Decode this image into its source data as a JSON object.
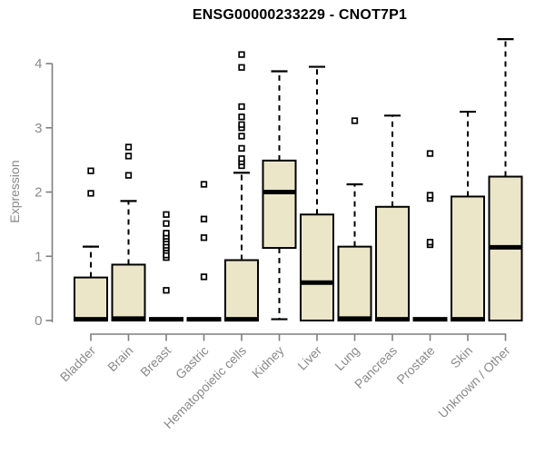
{
  "chart_data": {
    "type": "boxplot",
    "title": "ENSG00000233229 - CNOT7P1",
    "xlabel": "",
    "ylabel": "Expression",
    "ylim": [
      0,
      4.4
    ],
    "yticks": [
      0,
      1,
      2,
      3,
      4
    ],
    "grid": false,
    "legend": "none",
    "colors": {
      "box_fill": "#ece6c9",
      "box_stroke": "#000000",
      "median": "#000000",
      "whisker": "#000000",
      "axis": "#7f7f7f",
      "tick_label": "#8a8a8a",
      "title": "#000000",
      "background": "#ffffff"
    },
    "categories": [
      "Bladder",
      "Brain",
      "Breast",
      "Gastric",
      "Hematopoietic cells",
      "Kidney",
      "Liver",
      "Lung",
      "Pancreas",
      "Prostate",
      "Skin",
      "Unknown / Other"
    ],
    "series": [
      {
        "name": "Bladder",
        "q1": 0,
        "median": 0.02,
        "q3": 0.67,
        "whisker_low": 0,
        "whisker_high": 1.15,
        "outliers": [
          1.98,
          2.33
        ]
      },
      {
        "name": "Brain",
        "q1": 0,
        "median": 0.03,
        "q3": 0.87,
        "whisker_low": 0,
        "whisker_high": 1.86,
        "outliers": [
          2.26,
          2.56,
          2.7
        ]
      },
      {
        "name": "Breast",
        "q1": 0,
        "median": 0.02,
        "q3": 0.03,
        "whisker_low": 0,
        "whisker_high": 0.03,
        "outliers": [
          0.47,
          0.98,
          1.02,
          1.09,
          1.13,
          1.17,
          1.22,
          1.27,
          1.31,
          1.36,
          1.51,
          1.65
        ]
      },
      {
        "name": "Gastric",
        "q1": 0,
        "median": 0.02,
        "q3": 0.03,
        "whisker_low": 0,
        "whisker_high": 0.03,
        "outliers": [
          0.68,
          1.29,
          1.58,
          2.12
        ]
      },
      {
        "name": "Hematopoietic cells",
        "q1": 0,
        "median": 0.02,
        "q3": 0.94,
        "whisker_low": 0,
        "whisker_high": 2.3,
        "outliers": [
          2.41,
          2.47,
          2.52,
          2.68,
          2.87,
          3.0,
          3.05,
          3.17,
          3.33,
          3.94,
          4.14
        ]
      },
      {
        "name": "Kidney",
        "q1": 1.13,
        "median": 2.0,
        "q3": 2.49,
        "whisker_low": 0.02,
        "whisker_high": 3.88,
        "outliers": []
      },
      {
        "name": "Liver",
        "q1": 0,
        "median": 0.59,
        "q3": 1.65,
        "whisker_low": 0,
        "whisker_high": 3.95,
        "outliers": []
      },
      {
        "name": "Lung",
        "q1": 0,
        "median": 0.03,
        "q3": 1.15,
        "whisker_low": 0,
        "whisker_high": 2.12,
        "outliers": [
          3.11
        ]
      },
      {
        "name": "Pancreas",
        "q1": 0,
        "median": 0.02,
        "q3": 1.77,
        "whisker_low": 0,
        "whisker_high": 3.19,
        "outliers": []
      },
      {
        "name": "Prostate",
        "q1": 0,
        "median": 0.02,
        "q3": 0.03,
        "whisker_low": 0,
        "whisker_high": 0.03,
        "outliers": [
          1.18,
          1.22,
          1.9,
          1.95,
          2.6
        ]
      },
      {
        "name": "Skin",
        "q1": 0,
        "median": 0.02,
        "q3": 1.93,
        "whisker_low": 0,
        "whisker_high": 3.25,
        "outliers": []
      },
      {
        "name": "Unknown / Other",
        "q1": 0,
        "median": 1.14,
        "q3": 2.24,
        "whisker_low": 0,
        "whisker_high": 4.38,
        "outliers": []
      }
    ]
  }
}
